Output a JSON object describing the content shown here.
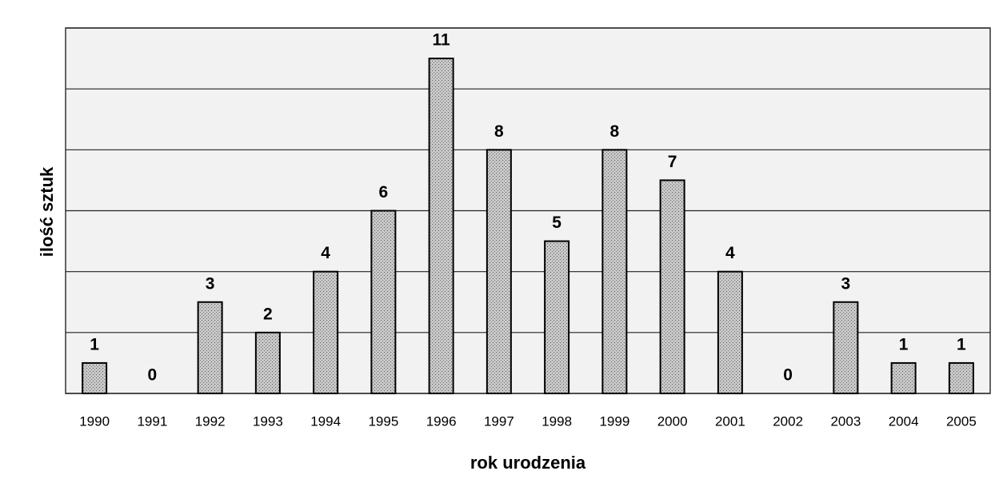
{
  "chart_data": {
    "type": "bar",
    "xlabel": "rok urodzenia",
    "ylabel": "ilość sztuk",
    "categories": [
      "1990",
      "1991",
      "1992",
      "1993",
      "1994",
      "1995",
      "1996",
      "1997",
      "1998",
      "1999",
      "2000",
      "2001",
      "2002",
      "2003",
      "2004",
      "2005"
    ],
    "values": [
      1,
      0,
      3,
      2,
      4,
      6,
      11,
      8,
      5,
      8,
      7,
      4,
      0,
      3,
      1,
      1
    ],
    "color": "#b8b8b8",
    "ylim": [
      0,
      12
    ],
    "yticks": [
      0,
      2,
      4,
      6,
      8,
      10,
      12
    ],
    "grid": true
  }
}
